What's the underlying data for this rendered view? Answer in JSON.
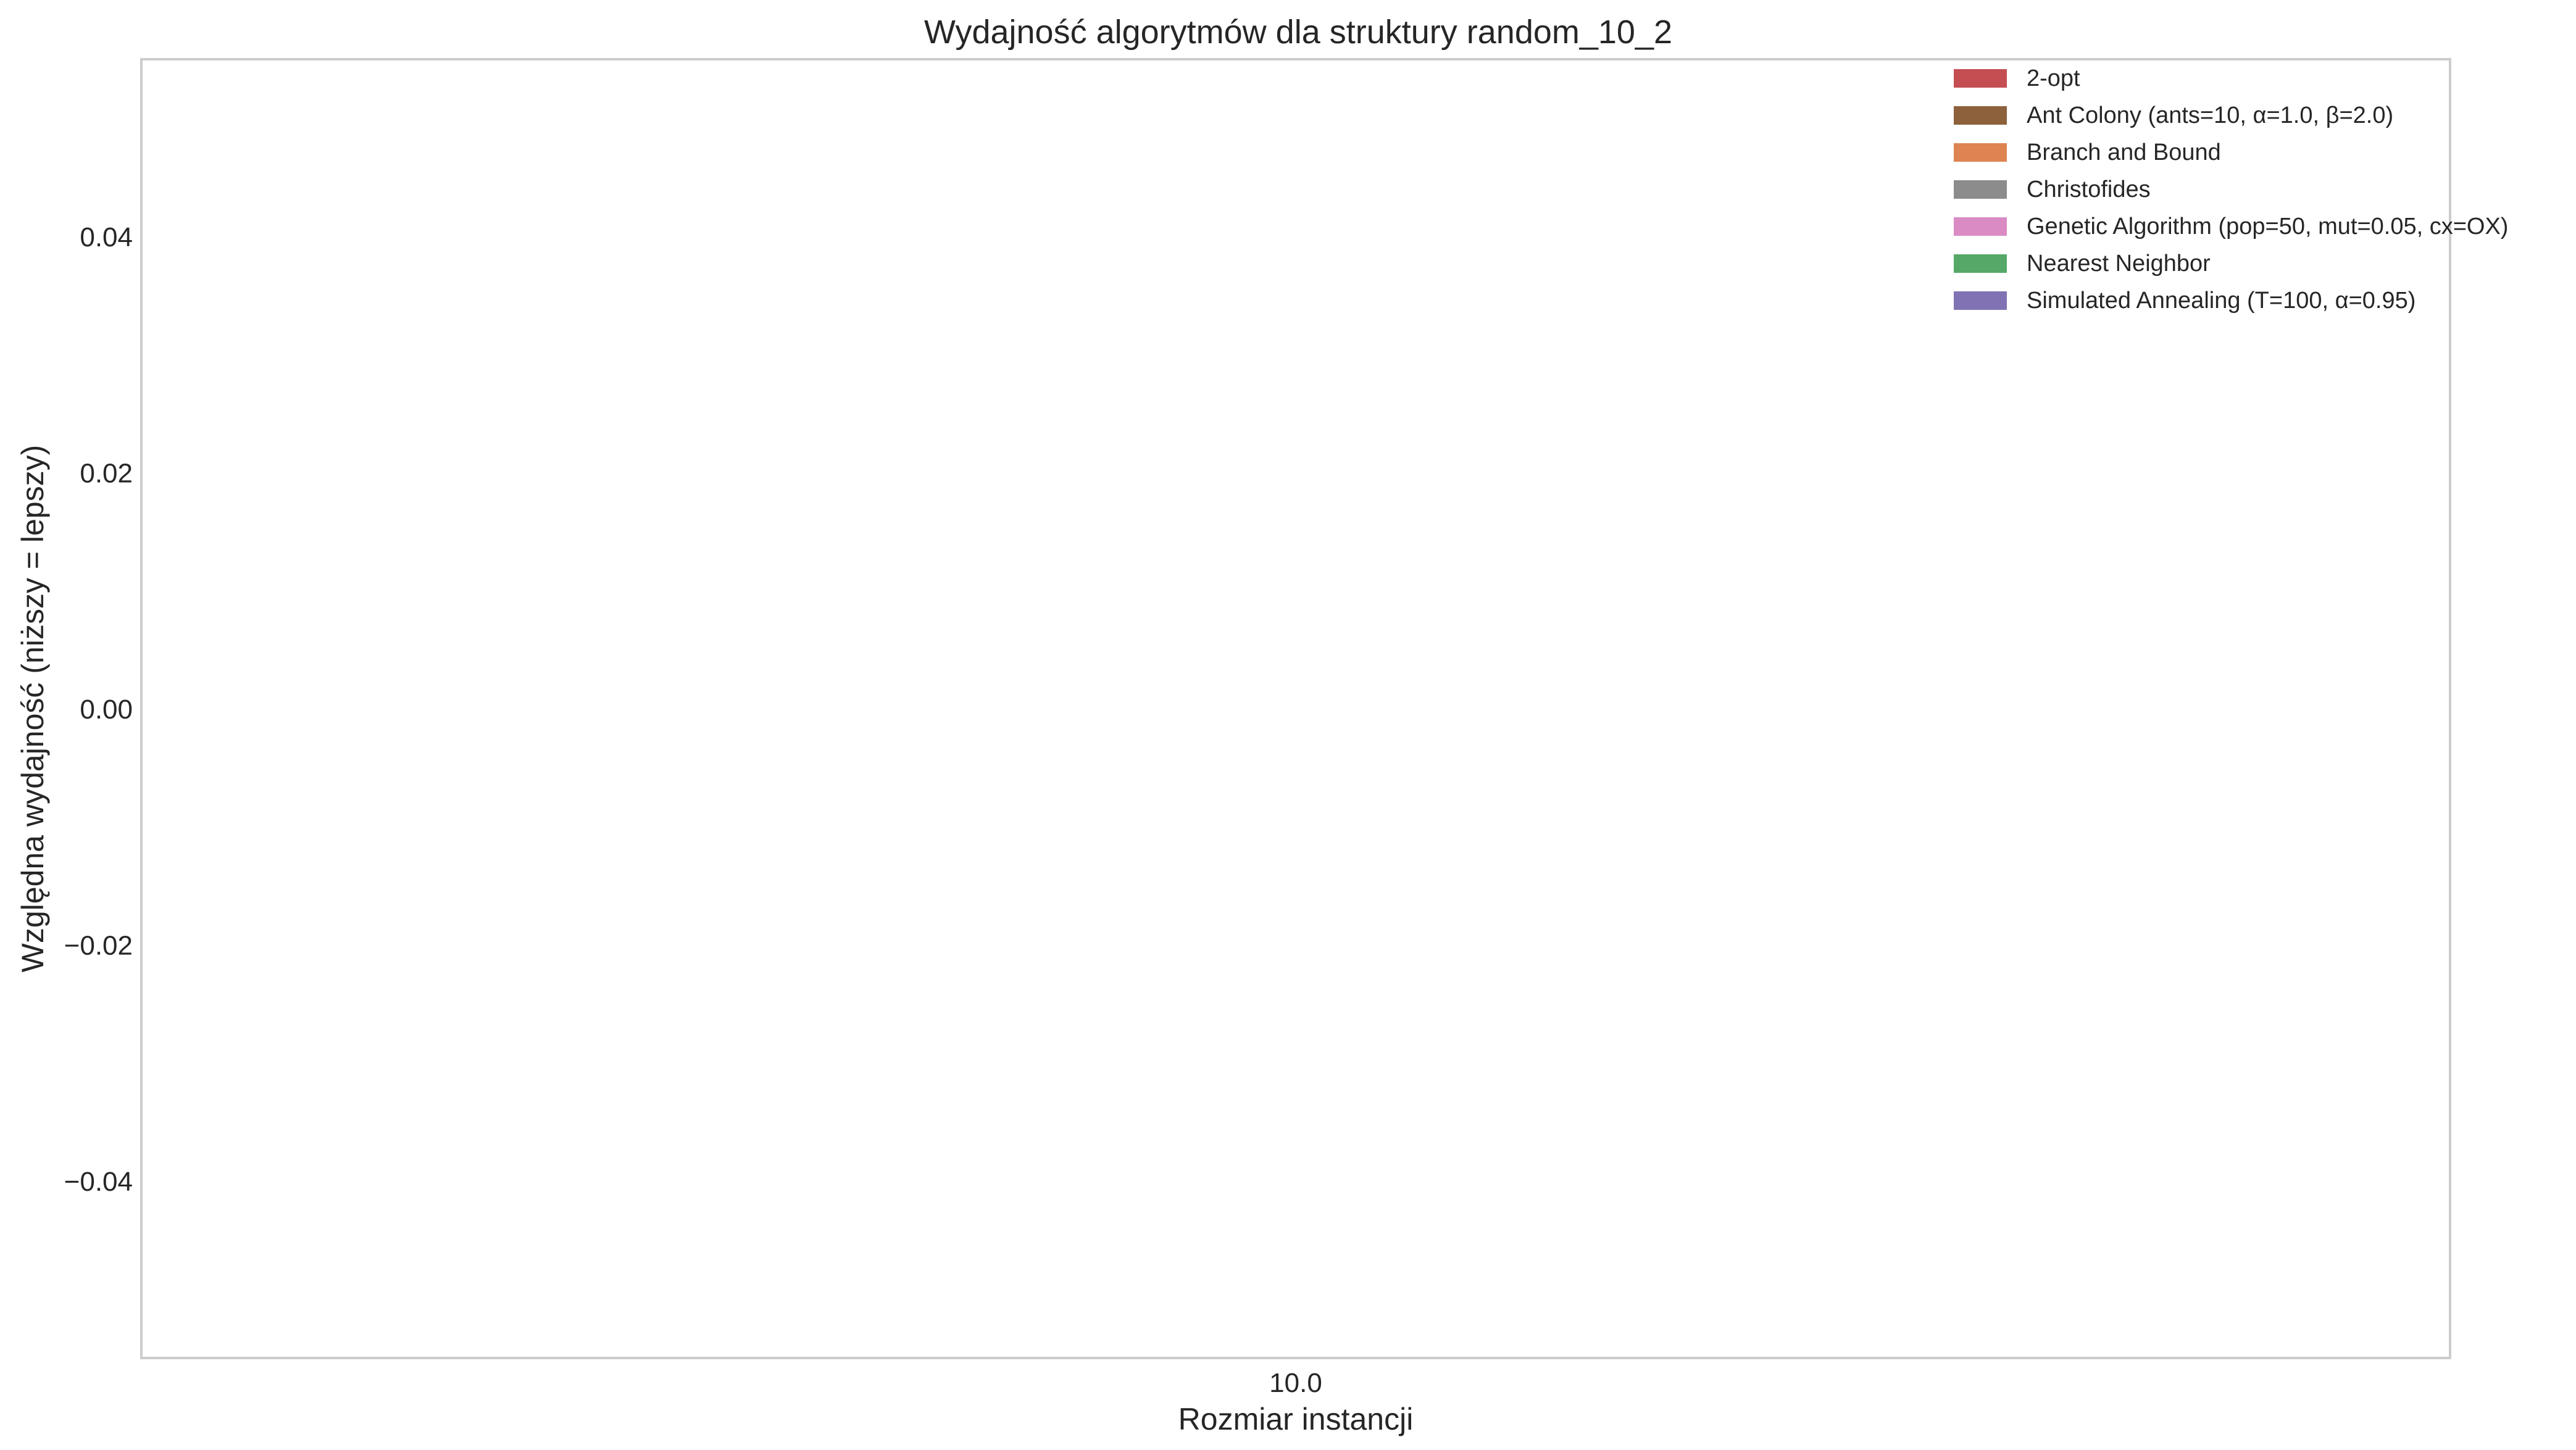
{
  "chart_data": {
    "type": "bar",
    "title": "Wydajność algorytmów dla struktury random_10_2",
    "xlabel": "Rozmiar instancji",
    "ylabel": "Względna wydajność (niższy = lepszy)",
    "categories": [
      "10.0"
    ],
    "ylim": [
      -0.055,
      0.055
    ],
    "yticks": [
      {
        "value": 0.04,
        "label": "0.04"
      },
      {
        "value": 0.02,
        "label": "0.02"
      },
      {
        "value": 0.0,
        "label": "0.00"
      },
      {
        "value": -0.02,
        "label": "−0.02"
      },
      {
        "value": -0.04,
        "label": "−0.04"
      }
    ],
    "grid": false,
    "legend_position": "top-right",
    "series": [
      {
        "name": "2-opt",
        "color": "#c44e52",
        "values": [
          0
        ]
      },
      {
        "name": "Ant Colony (ants=10, α=1.0, β=2.0)",
        "color": "#8c613c",
        "values": [
          0
        ]
      },
      {
        "name": "Branch and Bound",
        "color": "#dd8452",
        "values": [
          0
        ]
      },
      {
        "name": "Christofides",
        "color": "#8c8c8c",
        "values": [
          0
        ]
      },
      {
        "name": "Genetic Algorithm (pop=50, mut=0.05, cx=OX)",
        "color": "#da8bc3",
        "values": [
          0
        ]
      },
      {
        "name": "Nearest Neighbor",
        "color": "#55a868",
        "values": [
          0
        ]
      },
      {
        "name": "Simulated Annealing (T=100, α=0.95)",
        "color": "#8172b3",
        "values": [
          0
        ]
      }
    ]
  }
}
